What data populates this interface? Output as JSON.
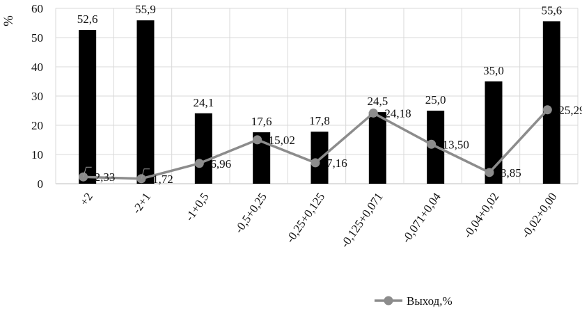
{
  "chart_data": {
    "type": "bar",
    "ylabel": "%",
    "ylim": [
      0,
      60
    ],
    "yticks": [
      "0",
      "10",
      "20",
      "30",
      "40",
      "50",
      "60"
    ],
    "grid": true,
    "legend_position": "bottom",
    "categories": [
      "+2",
      "-2+1",
      "-1+0,5",
      "-0,5+0,25",
      "-0,25+0,125",
      "-0,125+0,071",
      "-0,071+0,04",
      "-0,04+0,02",
      "-0,02+0,00"
    ],
    "series": [
      {
        "type": "bar",
        "color": "#000000",
        "values": [
          52.6,
          55.9,
          24.1,
          17.6,
          17.8,
          24.5,
          25.0,
          35.0,
          55.6
        ],
        "labels": [
          "52,6",
          "55,9",
          "24,1",
          "17,6",
          "17,8",
          "24,5",
          "25,0",
          "35,0",
          "55,6"
        ]
      },
      {
        "type": "line",
        "name": "Выход,%",
        "color": "#8c8c8c",
        "values": [
          2.33,
          1.72,
          6.96,
          15.02,
          7.16,
          24.18,
          13.5,
          3.85,
          25.29
        ],
        "labels": [
          "2,33",
          "1,72",
          "6,96",
          "15,02",
          "7,16",
          "24,18",
          "13,50",
          "3,85",
          "25,29"
        ]
      }
    ]
  }
}
